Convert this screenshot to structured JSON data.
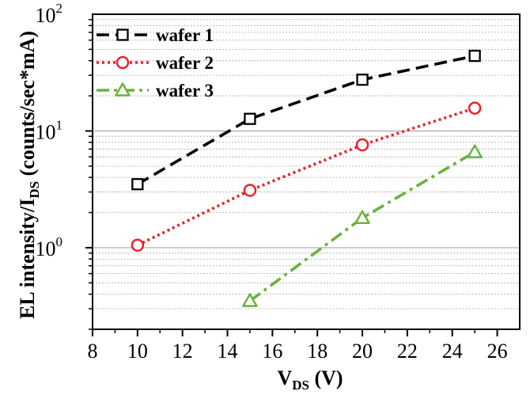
{
  "chart_data": {
    "type": "line",
    "y_scale": "log",
    "xlabel": {
      "main": "V",
      "sub": "DS",
      "suffix": " (V)"
    },
    "ylabel": {
      "main": "EL intensity/I",
      "sub": "DS",
      "suffix": " (counts/sec*mA)"
    },
    "xlim": [
      8,
      27
    ],
    "ylim": [
      0.2,
      100
    ],
    "x_ticks": [
      "8",
      "10",
      "12",
      "14",
      "16",
      "18",
      "20",
      "22",
      "24",
      "26"
    ],
    "y_ticks": [
      {
        "base": "10",
        "exp": "0",
        "value": 1
      },
      {
        "base": "10",
        "exp": "1",
        "value": 10
      },
      {
        "base": "10",
        "exp": "2",
        "value": 100
      }
    ],
    "grid": "horizontal minor and major",
    "legend_position": "top-left",
    "series": [
      {
        "name": "wafer 1",
        "color": "#000000",
        "marker": "square",
        "line": "dashed",
        "x": [
          10,
          15,
          20,
          25
        ],
        "y": [
          3.5,
          12.7,
          27.5,
          44
        ]
      },
      {
        "name": "wafer 2",
        "color": "#e8232a",
        "marker": "circle",
        "line": "dotted",
        "x": [
          10,
          15,
          20,
          25
        ],
        "y": [
          1.05,
          3.1,
          7.6,
          15.7
        ]
      },
      {
        "name": "wafer 3",
        "color": "#6ab23e",
        "marker": "triangle",
        "line": "dash-dot",
        "x": [
          15,
          20,
          25
        ],
        "y": [
          0.35,
          1.8,
          6.6
        ]
      }
    ]
  }
}
